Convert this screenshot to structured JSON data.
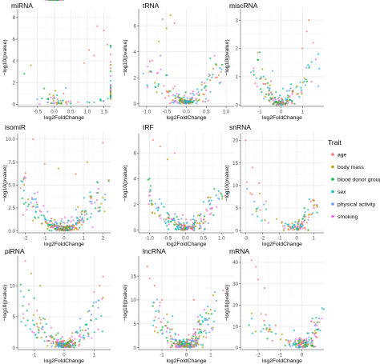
{
  "chart_data": [
    {
      "type": "scatter",
      "title": "miRNA",
      "xlabel": "log2FoldChange",
      "ylabel": "−log10(pvalue)",
      "xlim": [
        -1.1,
        1.7
      ],
      "ylim": [
        -0.2,
        8.8
      ],
      "xticks": [
        -0.5,
        0.0,
        0.5,
        1.0,
        1.5
      ],
      "xticklabels": [
        "-0.5",
        "0.0",
        "0.5",
        "1.0",
        "1.5"
      ],
      "yticks": [
        0,
        2,
        4,
        6,
        8
      ],
      "yticklabels": [
        "0",
        "2",
        "4",
        "6",
        "8"
      ],
      "vmin": 0.0,
      "vmax": 8.0,
      "spread": 1.2,
      "width": 0.55,
      "noise": 0.18,
      "n": 110,
      "outliers": [
        [
          1.5,
          6.8,
          0
        ],
        [
          1.3,
          7.2,
          0
        ],
        [
          1.2,
          4.5,
          0
        ],
        [
          1.6,
          5.5,
          0
        ],
        [
          1.05,
          5.0,
          0
        ],
        [
          0.9,
          3.8,
          0
        ],
        [
          -0.9,
          2.8,
          2
        ],
        [
          -0.7,
          3.6,
          1
        ],
        [
          0.35,
          1.5,
          4
        ]
      ]
    },
    {
      "type": "scatter",
      "title": "tRNA",
      "xlabel": "log2FoldChange",
      "ylabel": "−log10(pvalue)",
      "xlim": [
        -1.2,
        1.2
      ],
      "ylim": [
        -0.2,
        7.3
      ],
      "xticks": [
        -1.0,
        -0.5,
        0.0,
        0.5,
        1.0
      ],
      "xticklabels": [
        "-1.0",
        "-0.5",
        "0.0",
        "0.5",
        "1.0"
      ],
      "yticks": [
        0,
        2,
        4,
        6
      ],
      "yticklabels": [
        "0",
        "2",
        "4",
        "6"
      ],
      "vmin": -1.0,
      "vmax": 0.9,
      "spread": 1.0,
      "width": 0.5,
      "noise": 0.22,
      "n": 150,
      "outliers": [
        [
          -0.6,
          6.5,
          0
        ],
        [
          -0.5,
          5.8,
          1
        ],
        [
          -0.3,
          6.2,
          0
        ],
        [
          -0.4,
          6.8,
          1
        ],
        [
          -0.7,
          4.8,
          1
        ],
        [
          0.6,
          3.5,
          2
        ],
        [
          0.9,
          3.0,
          2
        ],
        [
          -0.9,
          2.5,
          2
        ]
      ]
    },
    {
      "type": "scatter",
      "title": "miscRNA",
      "xlabel": "log2FoldChange",
      "ylabel": "−log10(pvalue)",
      "xlim": [
        -1.9,
        2.0
      ],
      "ylim": [
        -0.05,
        3.4
      ],
      "xticks": [
        -1,
        0,
        1
      ],
      "xticklabels": [
        "-1",
        "0",
        "1"
      ],
      "yticks": [
        0,
        1,
        2,
        3
      ],
      "yticklabels": [
        "0",
        "1",
        "2",
        "3"
      ],
      "vmin": -1.3,
      "vmax": 1.6,
      "spread": 1.0,
      "width": 0.55,
      "noise": 0.15,
      "n": 140,
      "outliers": [
        [
          1.3,
          3.0,
          0
        ],
        [
          1.2,
          2.6,
          0
        ],
        [
          1.5,
          2.2,
          0
        ],
        [
          1.0,
          2.0,
          0
        ],
        [
          -1.1,
          1.6,
          2
        ],
        [
          -1.3,
          1.2,
          2
        ],
        [
          -0.4,
          1.2,
          4
        ]
      ]
    },
    {
      "type": "scatter",
      "title": "isomiR",
      "xlabel": "log2FoldChange",
      "ylabel": "−log10(pvalue)",
      "xlim": [
        -2.4,
        2.4
      ],
      "ylim": [
        -0.2,
        10.6
      ],
      "xticks": [
        -2,
        -1,
        0,
        1,
        2
      ],
      "xticklabels": [
        "-2",
        "-1",
        "0",
        "1",
        "2"
      ],
      "yticks": [
        0.0,
        2.5,
        5.0,
        7.5,
        10.0
      ],
      "yticklabels": [
        "0.0",
        "2.5",
        "5.0",
        "7.5",
        "10.0"
      ],
      "vmin": -2.2,
      "vmax": 2.0,
      "spread": 1.2,
      "width": 0.5,
      "noise": 0.25,
      "n": 230,
      "outliers": [
        [
          -1.6,
          10.0,
          0
        ],
        [
          2.0,
          9.6,
          0
        ],
        [
          -1.0,
          7.3,
          0
        ],
        [
          -0.3,
          6.8,
          1
        ],
        [
          1.2,
          7.5,
          1
        ],
        [
          0.6,
          6.2,
          0
        ],
        [
          -2.0,
          6.3,
          0
        ]
      ]
    },
    {
      "type": "scatter",
      "title": "tRF",
      "xlabel": "log2FoldChange",
      "ylabel": "−log10(pvalue)",
      "xlim": [
        -1.3,
        1.35
      ],
      "ylim": [
        -0.2,
        7.5
      ],
      "xticks": [
        -1.0,
        -0.5,
        0.0,
        0.5,
        1.0
      ],
      "xticklabels": [
        "-1.0",
        "-0.5",
        "0.0",
        "0.5",
        "1.0"
      ],
      "yticks": [
        0,
        2,
        4,
        6
      ],
      "yticklabels": [
        "0",
        "2",
        "4",
        "6"
      ],
      "vmin": -1.1,
      "vmax": 1.0,
      "spread": 1.0,
      "width": 0.45,
      "noise": 0.22,
      "n": 170,
      "outliers": [
        [
          -0.9,
          7.0,
          0
        ],
        [
          -0.7,
          6.5,
          0
        ],
        [
          -0.5,
          5.5,
          1
        ],
        [
          -0.3,
          6.0,
          0
        ],
        [
          0.8,
          3.2,
          2
        ],
        [
          1.0,
          2.8,
          2
        ],
        [
          -1.0,
          4.0,
          2
        ]
      ]
    },
    {
      "type": "scatter",
      "title": "snRNA",
      "xlabel": "log2FoldChange",
      "ylabel": "−log10(pvalue)",
      "xlim": [
        -3.3,
        1.6
      ],
      "ylim": [
        -0.5,
        21.5
      ],
      "xticks": [
        -3,
        -2,
        -1,
        0,
        1
      ],
      "xticklabels": [
        "-3",
        "-2",
        "-1",
        "0",
        "1"
      ],
      "yticks": [
        0,
        5,
        10,
        15,
        20
      ],
      "yticklabels": [
        "0",
        "5",
        "10",
        "15",
        "20"
      ],
      "vmin": -3.0,
      "vmax": 1.2,
      "spread": 1.0,
      "width": 0.4,
      "noise": 0.4,
      "n": 90,
      "outliers": [
        [
          -3.0,
          20.0,
          0
        ],
        [
          -2.2,
          10.5,
          0
        ],
        [
          -1.8,
          6.5,
          0
        ],
        [
          -2.6,
          14.0,
          0
        ],
        [
          1.0,
          5.5,
          1
        ],
        [
          0.7,
          3.5,
          1
        ],
        [
          1.2,
          4.0,
          2
        ]
      ]
    },
    {
      "type": "scatter",
      "title": "piRNA",
      "xlabel": "log2FoldChange",
      "ylabel": "−log10(pvalue)",
      "xlim": [
        -1.55,
        1.55
      ],
      "ylim": [
        -0.3,
        14.8
      ],
      "xticks": [
        -1,
        0,
        1
      ],
      "xticklabels": [
        "-1",
        "0",
        "1"
      ],
      "yticks": [
        0,
        5,
        10
      ],
      "yticklabels": [
        "0",
        "5",
        "10"
      ],
      "vmin": -1.4,
      "vmax": 1.3,
      "spread": 1.3,
      "width": 0.55,
      "noise": 0.3,
      "n": 210,
      "outliers": [
        [
          -1.3,
          14.0,
          0
        ],
        [
          -1.1,
          12.0,
          1
        ],
        [
          1.3,
          11.5,
          0
        ],
        [
          -0.8,
          10.0,
          1
        ],
        [
          1.0,
          9.0,
          0
        ],
        [
          -1.0,
          8.0,
          2
        ]
      ]
    },
    {
      "type": "scatter",
      "title": "lncRNA",
      "xlabel": "log2FoldChange",
      "ylabel": "−log10(pvalue)",
      "xlim": [
        -1.95,
        1.95
      ],
      "ylim": [
        -0.4,
        19.2
      ],
      "xticks": [
        -1,
        0,
        1
      ],
      "xticklabels": [
        "-1",
        "0",
        "1"
      ],
      "yticks": [
        0,
        5,
        10,
        15
      ],
      "yticklabels": [
        "0",
        "5",
        "10",
        "15"
      ],
      "vmin": -1.4,
      "vmax": 1.0,
      "spread": 1.2,
      "width": 0.5,
      "noise": 0.3,
      "n": 220,
      "outliers": [
        [
          -1.6,
          17.0,
          0
        ],
        [
          -1.5,
          14.5,
          0
        ],
        [
          -1.3,
          13.0,
          0
        ],
        [
          1.5,
          12.0,
          0
        ],
        [
          -1.0,
          10.0,
          0
        ],
        [
          0.3,
          10.0,
          0
        ],
        [
          1.1,
          11.0,
          1
        ]
      ]
    },
    {
      "type": "scatter",
      "title": "mRNA",
      "xlabel": "log2FoldChange",
      "ylabel": "−log10(pvalue)",
      "xlim": [
        -2.8,
        1.0
      ],
      "ylim": [
        -0.8,
        43.0
      ],
      "xticks": [
        -2,
        -1,
        0
      ],
      "xticklabels": [
        "-2",
        "-1",
        "0"
      ],
      "yticks": [
        0,
        10,
        20,
        30,
        40
      ],
      "yticklabels": [
        "0",
        "10",
        "20",
        "30",
        "40"
      ],
      "vmin": -2.5,
      "vmax": 0.9,
      "spread": 1.2,
      "width": 0.4,
      "noise": 0.6,
      "n": 130,
      "outliers": [
        [
          -2.3,
          41.0,
          0
        ],
        [
          -2.1,
          38.0,
          0
        ],
        [
          -2.0,
          32.0,
          0
        ],
        [
          -1.7,
          28.0,
          0
        ],
        [
          0.8,
          12.0,
          0
        ],
        [
          0.6,
          8.0,
          1
        ]
      ]
    }
  ],
  "legend": {
    "title": "Trait",
    "items": [
      {
        "label": "age",
        "color": "#F8766D"
      },
      {
        "label": "body mass",
        "color": "#B79F00"
      },
      {
        "label": "blood donor group",
        "color": "#00BA38"
      },
      {
        "label": "sex",
        "color": "#00BFC4"
      },
      {
        "label": "physical activity",
        "color": "#619CFF"
      },
      {
        "label": "smoking",
        "color": "#F564E3"
      }
    ]
  },
  "style": {
    "panel_bg": "#ffffff",
    "grid_major": "#ebebeb",
    "grid_minor": "#f5f5f5",
    "axis": "#333333"
  }
}
